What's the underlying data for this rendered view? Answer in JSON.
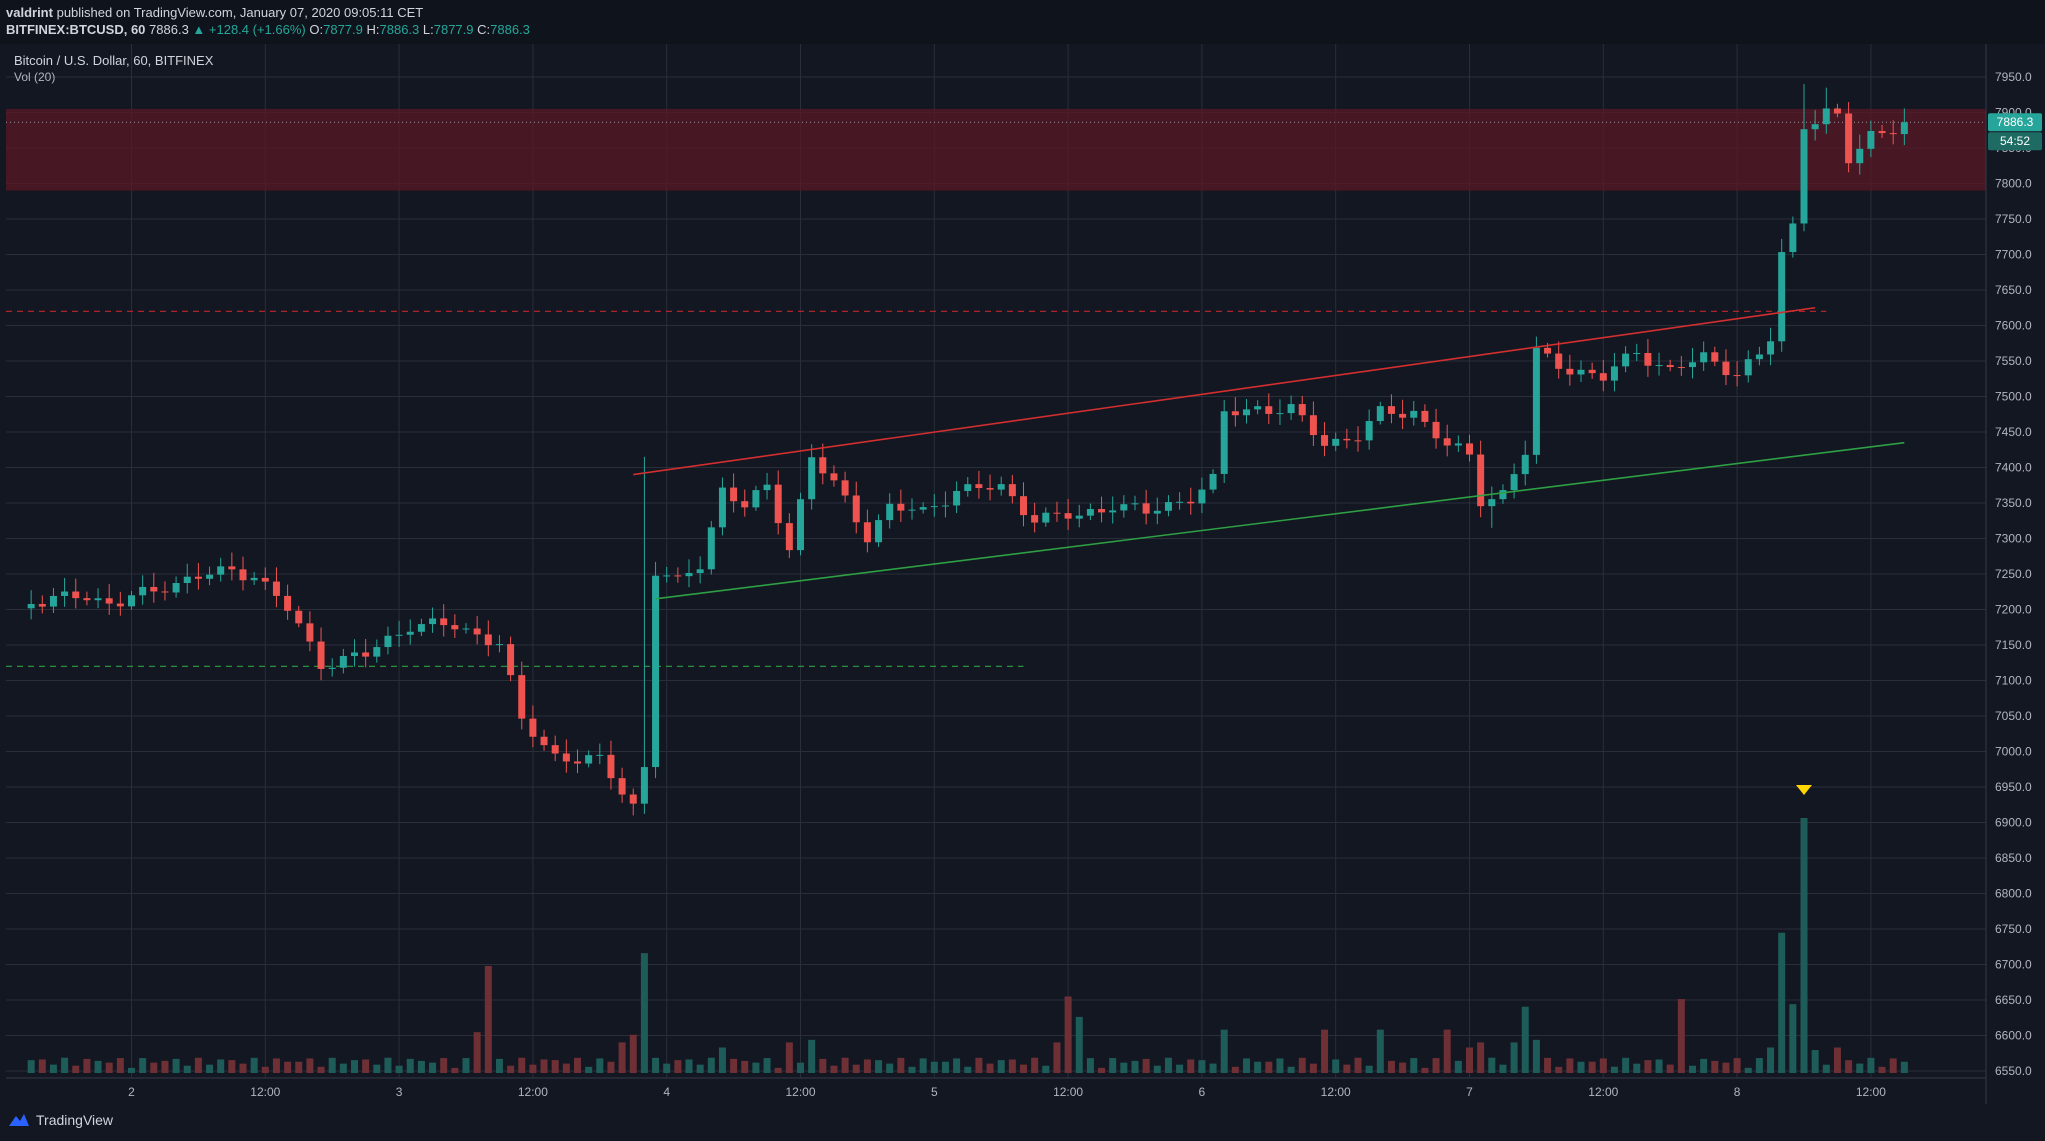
{
  "header": {
    "user": "valdrint",
    "published_text": "published on TradingView.com, January 07, 2020 09:05:11 CET",
    "symbol": "BITFINEX:BTCUSD, 60",
    "last": "7886.3",
    "change": "▲ +128.4 (+1.66%)",
    "o_label": "O:",
    "o_val": "7877.9",
    "h_label": "H:",
    "h_val": "7886.3",
    "l_label": "L:",
    "l_val": "7877.9",
    "c_label": "C:",
    "c_val": "7886.3"
  },
  "legend": {
    "title": "Bitcoin / U.S. Dollar, 60, BITFINEX",
    "volume": "Vol (20)"
  },
  "price_badge": {
    "value": "7886.3",
    "countdown": "54:52"
  },
  "footer": {
    "brand": "TradingView"
  },
  "colors": {
    "up": "#26a69a",
    "down": "#ef5350",
    "up_volume": "#1e5c59",
    "down_volume": "#6e2f35",
    "resistance_zone": "#5a1a25",
    "background": "#131722",
    "grid": "#2a2e39"
  },
  "chart_data": {
    "type": "candlestick",
    "title": "Bitcoin / U.S. Dollar, 60, BITFINEX",
    "y_tick_labels": [
      "7950.0",
      "7900.0",
      "7850.0",
      "7800.0",
      "7750.0",
      "7700.0",
      "7650.0",
      "7600.0",
      "7550.0",
      "7500.0",
      "7450.0",
      "7400.0",
      "7350.0",
      "7300.0",
      "7250.0",
      "7200.0",
      "7150.0",
      "7100.0",
      "7050.0",
      "7000.0",
      "6950.0",
      "6900.0",
      "6850.0",
      "6800.0",
      "6750.0",
      "6700.0",
      "6650.0",
      "6600.0",
      "6550.0"
    ],
    "ylim": [
      6535,
      7980
    ],
    "x_tick_labels": [
      "2",
      "12:00",
      "3",
      "12:00",
      "4",
      "12:00",
      "5",
      "12:00",
      "6",
      "12:00",
      "7",
      "12:00",
      "8",
      "12:00"
    ],
    "x_range_hours": [
      -9,
      171
    ],
    "anchors": [
      {
        "t": 0,
        "p": 7215
      },
      {
        "t": 3,
        "p": 7235
      },
      {
        "t": 9,
        "p": 7255
      },
      {
        "t": 11,
        "p": 7250
      },
      {
        "t": 14,
        "p": 7200
      },
      {
        "t": 17,
        "p": 7125
      },
      {
        "t": 21,
        "p": 7135
      },
      {
        "t": 25,
        "p": 7180
      },
      {
        "t": 29,
        "p": 7175
      },
      {
        "t": 33,
        "p": 7155
      },
      {
        "t": 35,
        "p": 7040
      },
      {
        "t": 38,
        "p": 6995
      },
      {
        "t": 42,
        "p": 6985
      },
      {
        "t": 45,
        "p": 6925
      },
      {
        "t": 46,
        "p": 6980
      },
      {
        "t": 47,
        "p": 7255
      },
      {
        "t": 49,
        "p": 7235
      },
      {
        "t": 51,
        "p": 7265
      },
      {
        "t": 53,
        "p": 7370
      },
      {
        "t": 55,
        "p": 7345
      },
      {
        "t": 57,
        "p": 7370
      },
      {
        "t": 59,
        "p": 7290
      },
      {
        "t": 61,
        "p": 7415
      },
      {
        "t": 63,
        "p": 7375
      },
      {
        "t": 66,
        "p": 7305
      },
      {
        "t": 68,
        "p": 7345
      },
      {
        "t": 71,
        "p": 7335
      },
      {
        "t": 74,
        "p": 7370
      },
      {
        "t": 78,
        "p": 7370
      },
      {
        "t": 81,
        "p": 7330
      },
      {
        "t": 85,
        "p": 7330
      },
      {
        "t": 88,
        "p": 7350
      },
      {
        "t": 91,
        "p": 7335
      },
      {
        "t": 95,
        "p": 7360
      },
      {
        "t": 97,
        "p": 7380
      },
      {
        "t": 98,
        "p": 7475
      },
      {
        "t": 101,
        "p": 7485
      },
      {
        "t": 104,
        "p": 7480
      },
      {
        "t": 107,
        "p": 7435
      },
      {
        "t": 110,
        "p": 7445
      },
      {
        "t": 112,
        "p": 7475
      },
      {
        "t": 115,
        "p": 7480
      },
      {
        "t": 118,
        "p": 7430
      },
      {
        "t": 120,
        "p": 7415
      },
      {
        "t": 121,
        "p": 7355
      },
      {
        "t": 123,
        "p": 7365
      },
      {
        "t": 125,
        "p": 7420
      },
      {
        "t": 126,
        "p": 7560
      },
      {
        "t": 129,
        "p": 7540
      },
      {
        "t": 132,
        "p": 7525
      },
      {
        "t": 135,
        "p": 7565
      },
      {
        "t": 138,
        "p": 7535
      },
      {
        "t": 141,
        "p": 7555
      },
      {
        "t": 144,
        "p": 7535
      },
      {
        "t": 146,
        "p": 7555
      },
      {
        "t": 147,
        "p": 7580
      },
      {
        "t": 148,
        "p": 7700
      },
      {
        "t": 149,
        "p": 7740
      },
      {
        "t": 150,
        "p": 7885
      },
      {
        "t": 152,
        "p": 7900
      },
      {
        "t": 153,
        "p": 7890
      },
      {
        "t": 154,
        "p": 7830
      },
      {
        "t": 156,
        "p": 7870
      },
      {
        "t": 158,
        "p": 7880
      },
      {
        "t": 159,
        "p": 7886.3
      }
    ],
    "volume_spikes": [
      {
        "t": 32,
        "v": 42
      },
      {
        "t": 31,
        "v": 16
      },
      {
        "t": 46,
        "v": 47
      },
      {
        "t": 45,
        "v": 15
      },
      {
        "t": 44,
        "v": 12
      },
      {
        "t": 53,
        "v": 10
      },
      {
        "t": 59,
        "v": 12
      },
      {
        "t": 61,
        "v": 13
      },
      {
        "t": 84,
        "v": 30
      },
      {
        "t": 85,
        "v": 22
      },
      {
        "t": 83,
        "v": 12
      },
      {
        "t": 98,
        "v": 17
      },
      {
        "t": 107,
        "v": 17
      },
      {
        "t": 112,
        "v": 17
      },
      {
        "t": 118,
        "v": 17
      },
      {
        "t": 120,
        "v": 10
      },
      {
        "t": 121,
        "v": 12
      },
      {
        "t": 124,
        "v": 12
      },
      {
        "t": 125,
        "v": 26
      },
      {
        "t": 126,
        "v": 13
      },
      {
        "t": 139,
        "v": 29
      },
      {
        "t": 148,
        "v": 55
      },
      {
        "t": 149,
        "v": 27
      },
      {
        "t": 150,
        "v": 100
      },
      {
        "t": 151,
        "v": 9
      },
      {
        "t": 147,
        "v": 10
      },
      {
        "t": 153,
        "v": 10
      }
    ],
    "volume_max_visible": 100,
    "resistance_zone": [
      7790,
      7905
    ],
    "red_dashed_level": 7620,
    "green_dashed_level": 7120,
    "ascending_channel": {
      "upper": [
        {
          "t": 45,
          "p": 7390
        },
        {
          "t": 151,
          "p": 7625
        }
      ],
      "lower": [
        {
          "t": 47,
          "p": 7215
        },
        {
          "t": 159,
          "p": 7435
        }
      ]
    },
    "last_price": 7886.3,
    "volume_spike_marker_hour": 150
  }
}
